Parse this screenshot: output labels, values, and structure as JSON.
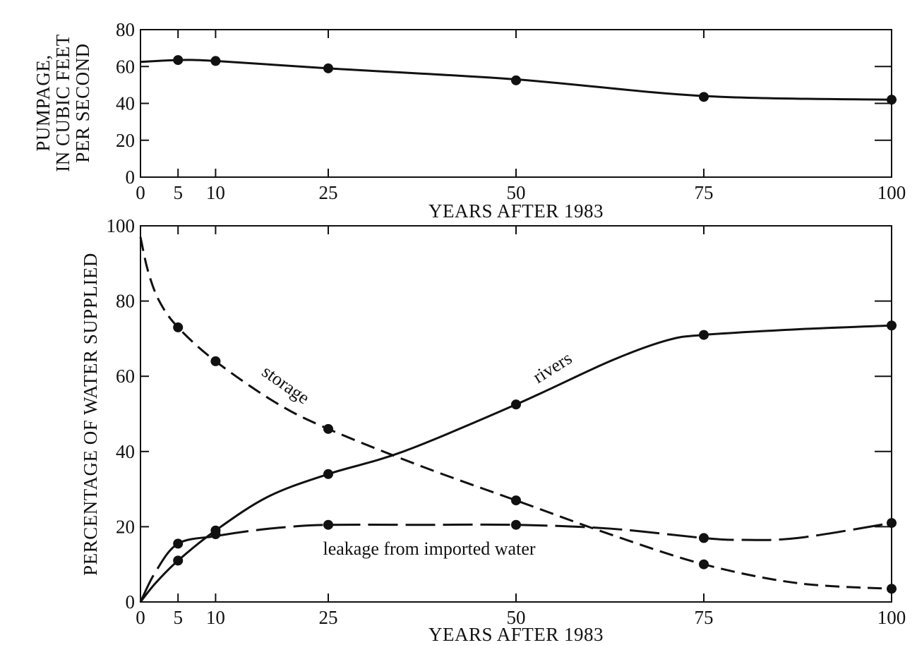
{
  "chart_data": [
    {
      "type": "line",
      "ylabel_lines": [
        "PUMPAGE,",
        "IN CUBIC FEET",
        "PER SECOND"
      ],
      "xlabel": "YEARS AFTER 1983",
      "xlim": [
        0,
        100
      ],
      "ylim": [
        0,
        80
      ],
      "xticks": [
        "0",
        "5",
        "10",
        "25",
        "50",
        "75",
        "100"
      ],
      "xtick_values": [
        0,
        5,
        10,
        25,
        50,
        75,
        100
      ],
      "yticks": [
        "0",
        "20",
        "40",
        "60",
        "80"
      ],
      "ytick_values": [
        0,
        20,
        40,
        60,
        80
      ],
      "grid": false,
      "series": [
        {
          "style": "solid",
          "line": [
            [
              0,
              62.5
            ],
            [
              5,
              63.5
            ],
            [
              10,
              63
            ],
            [
              25,
              59
            ],
            [
              50,
              53
            ],
            [
              75,
              44
            ],
            [
              100,
              42
            ]
          ],
          "points": [
            [
              5,
              63.5
            ],
            [
              10,
              63
            ],
            [
              25,
              59
            ],
            [
              50,
              52.5
            ],
            [
              75,
              43.5
            ],
            [
              100,
              42
            ]
          ]
        }
      ]
    },
    {
      "type": "line",
      "ylabel": "PERCENTAGE OF WATER SUPPLIED",
      "xlabel": "YEARS AFTER 1983",
      "xlim": [
        0,
        100
      ],
      "ylim": [
        0,
        100
      ],
      "xticks": [
        "0",
        "5",
        "10",
        "25",
        "50",
        "75",
        "100"
      ],
      "xtick_values": [
        0,
        5,
        10,
        25,
        50,
        75,
        100
      ],
      "yticks": [
        "0",
        "20",
        "40",
        "60",
        "80",
        "100"
      ],
      "ytick_values": [
        0,
        20,
        40,
        60,
        80,
        100
      ],
      "grid": false,
      "series": [
        {
          "annotation": "storage",
          "style": "short-dash",
          "line": [
            [
              0,
              97
            ],
            [
              1,
              88
            ],
            [
              2.5,
              80
            ],
            [
              5,
              73
            ],
            [
              10,
              64
            ],
            [
              18,
              53
            ],
            [
              25,
              46
            ],
            [
              37.5,
              36
            ],
            [
              50,
              27
            ],
            [
              62.5,
              18
            ],
            [
              75,
              10
            ],
            [
              87.5,
              5
            ],
            [
              100,
              3.5
            ]
          ],
          "points": [
            [
              5,
              73
            ],
            [
              10,
              64
            ],
            [
              25,
              46
            ],
            [
              50,
              27
            ],
            [
              75,
              10
            ],
            [
              100,
              3.5
            ]
          ]
        },
        {
          "annotation": "rivers",
          "style": "solid",
          "line": [
            [
              0,
              0
            ],
            [
              2,
              5
            ],
            [
              5,
              11
            ],
            [
              10,
              19
            ],
            [
              17,
              28
            ],
            [
              25,
              34
            ],
            [
              35,
              40
            ],
            [
              50,
              52.5
            ],
            [
              62.5,
              64
            ],
            [
              70,
              69.5
            ],
            [
              75,
              71
            ],
            [
              87.5,
              72.5
            ],
            [
              100,
              73.5
            ]
          ],
          "points": [
            [
              5,
              11
            ],
            [
              10,
              19
            ],
            [
              25,
              34
            ],
            [
              50,
              52.5
            ],
            [
              75,
              71
            ],
            [
              100,
              73.5
            ]
          ]
        },
        {
          "annotation": "leakage from imported water",
          "style": "long-dash",
          "line": [
            [
              0,
              0
            ],
            [
              2,
              8
            ],
            [
              5,
              15.5
            ],
            [
              10,
              17.5
            ],
            [
              15,
              19
            ],
            [
              20,
              20
            ],
            [
              25,
              20.5
            ],
            [
              37.5,
              20.5
            ],
            [
              50,
              20.5
            ],
            [
              62.5,
              19.5
            ],
            [
              75,
              17
            ],
            [
              80,
              16.5
            ],
            [
              87.5,
              17
            ],
            [
              100,
              21
            ]
          ],
          "points": [
            [
              5,
              15.5
            ],
            [
              10,
              18
            ],
            [
              25,
              20.5
            ],
            [
              50,
              20.5
            ],
            [
              75,
              17
            ],
            [
              100,
              21
            ]
          ]
        }
      ]
    }
  ]
}
